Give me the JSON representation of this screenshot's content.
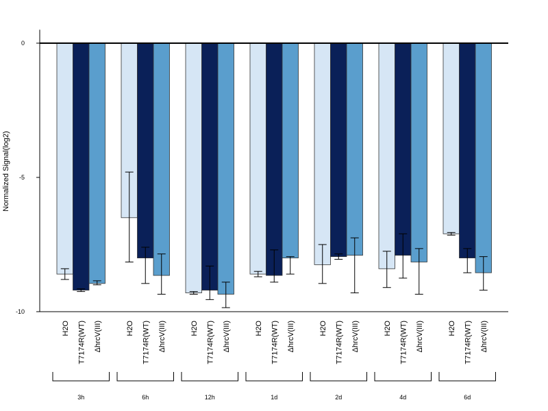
{
  "chart_data": {
    "type": "bar",
    "ylabel": "Normalized Signal(log2)",
    "ylim": [
      -10,
      0.5
    ],
    "yticks": [
      0,
      -5,
      -10
    ],
    "grid": false,
    "legend": "none",
    "groups": [
      "3h",
      "6h",
      "12h",
      "1d",
      "2d",
      "4d",
      "6d"
    ],
    "series": [
      {
        "name": "H2O",
        "color": "#d6e6f5",
        "values": [
          -8.6,
          -6.5,
          -9.3,
          -8.6,
          -8.25,
          -8.4,
          -7.1
        ],
        "error_low": [
          -8.8,
          -8.15,
          -9.35,
          -8.7,
          -8.95,
          -9.1,
          -7.15
        ],
        "error_high": [
          -8.4,
          -4.8,
          -9.25,
          -8.5,
          -7.5,
          -7.75,
          -7.05
        ]
      },
      {
        "name": "T7174R(WT)",
        "color": "#0a2058",
        "values": [
          -9.2,
          -8.0,
          -9.2,
          -8.65,
          -7.95,
          -7.9,
          -8.0
        ],
        "error_low": [
          -9.25,
          -8.95,
          -9.55,
          -8.9,
          -8.05,
          -8.75,
          -8.55
        ],
        "error_high": [
          -9.15,
          -7.6,
          -8.3,
          -7.7,
          -7.85,
          -7.1,
          -7.65
        ]
      },
      {
        "name": "ΔhrcV(III)",
        "color": "#5a9ecd",
        "values": [
          -8.95,
          -8.65,
          -9.35,
          -8.0,
          -7.9,
          -8.15,
          -8.55
        ],
        "error_low": [
          -9.0,
          -9.35,
          -9.85,
          -8.6,
          -9.3,
          -9.35,
          -9.2
        ],
        "error_high": [
          -8.85,
          -7.85,
          -8.9,
          -7.95,
          -7.25,
          -7.65,
          -7.95
        ]
      }
    ]
  }
}
